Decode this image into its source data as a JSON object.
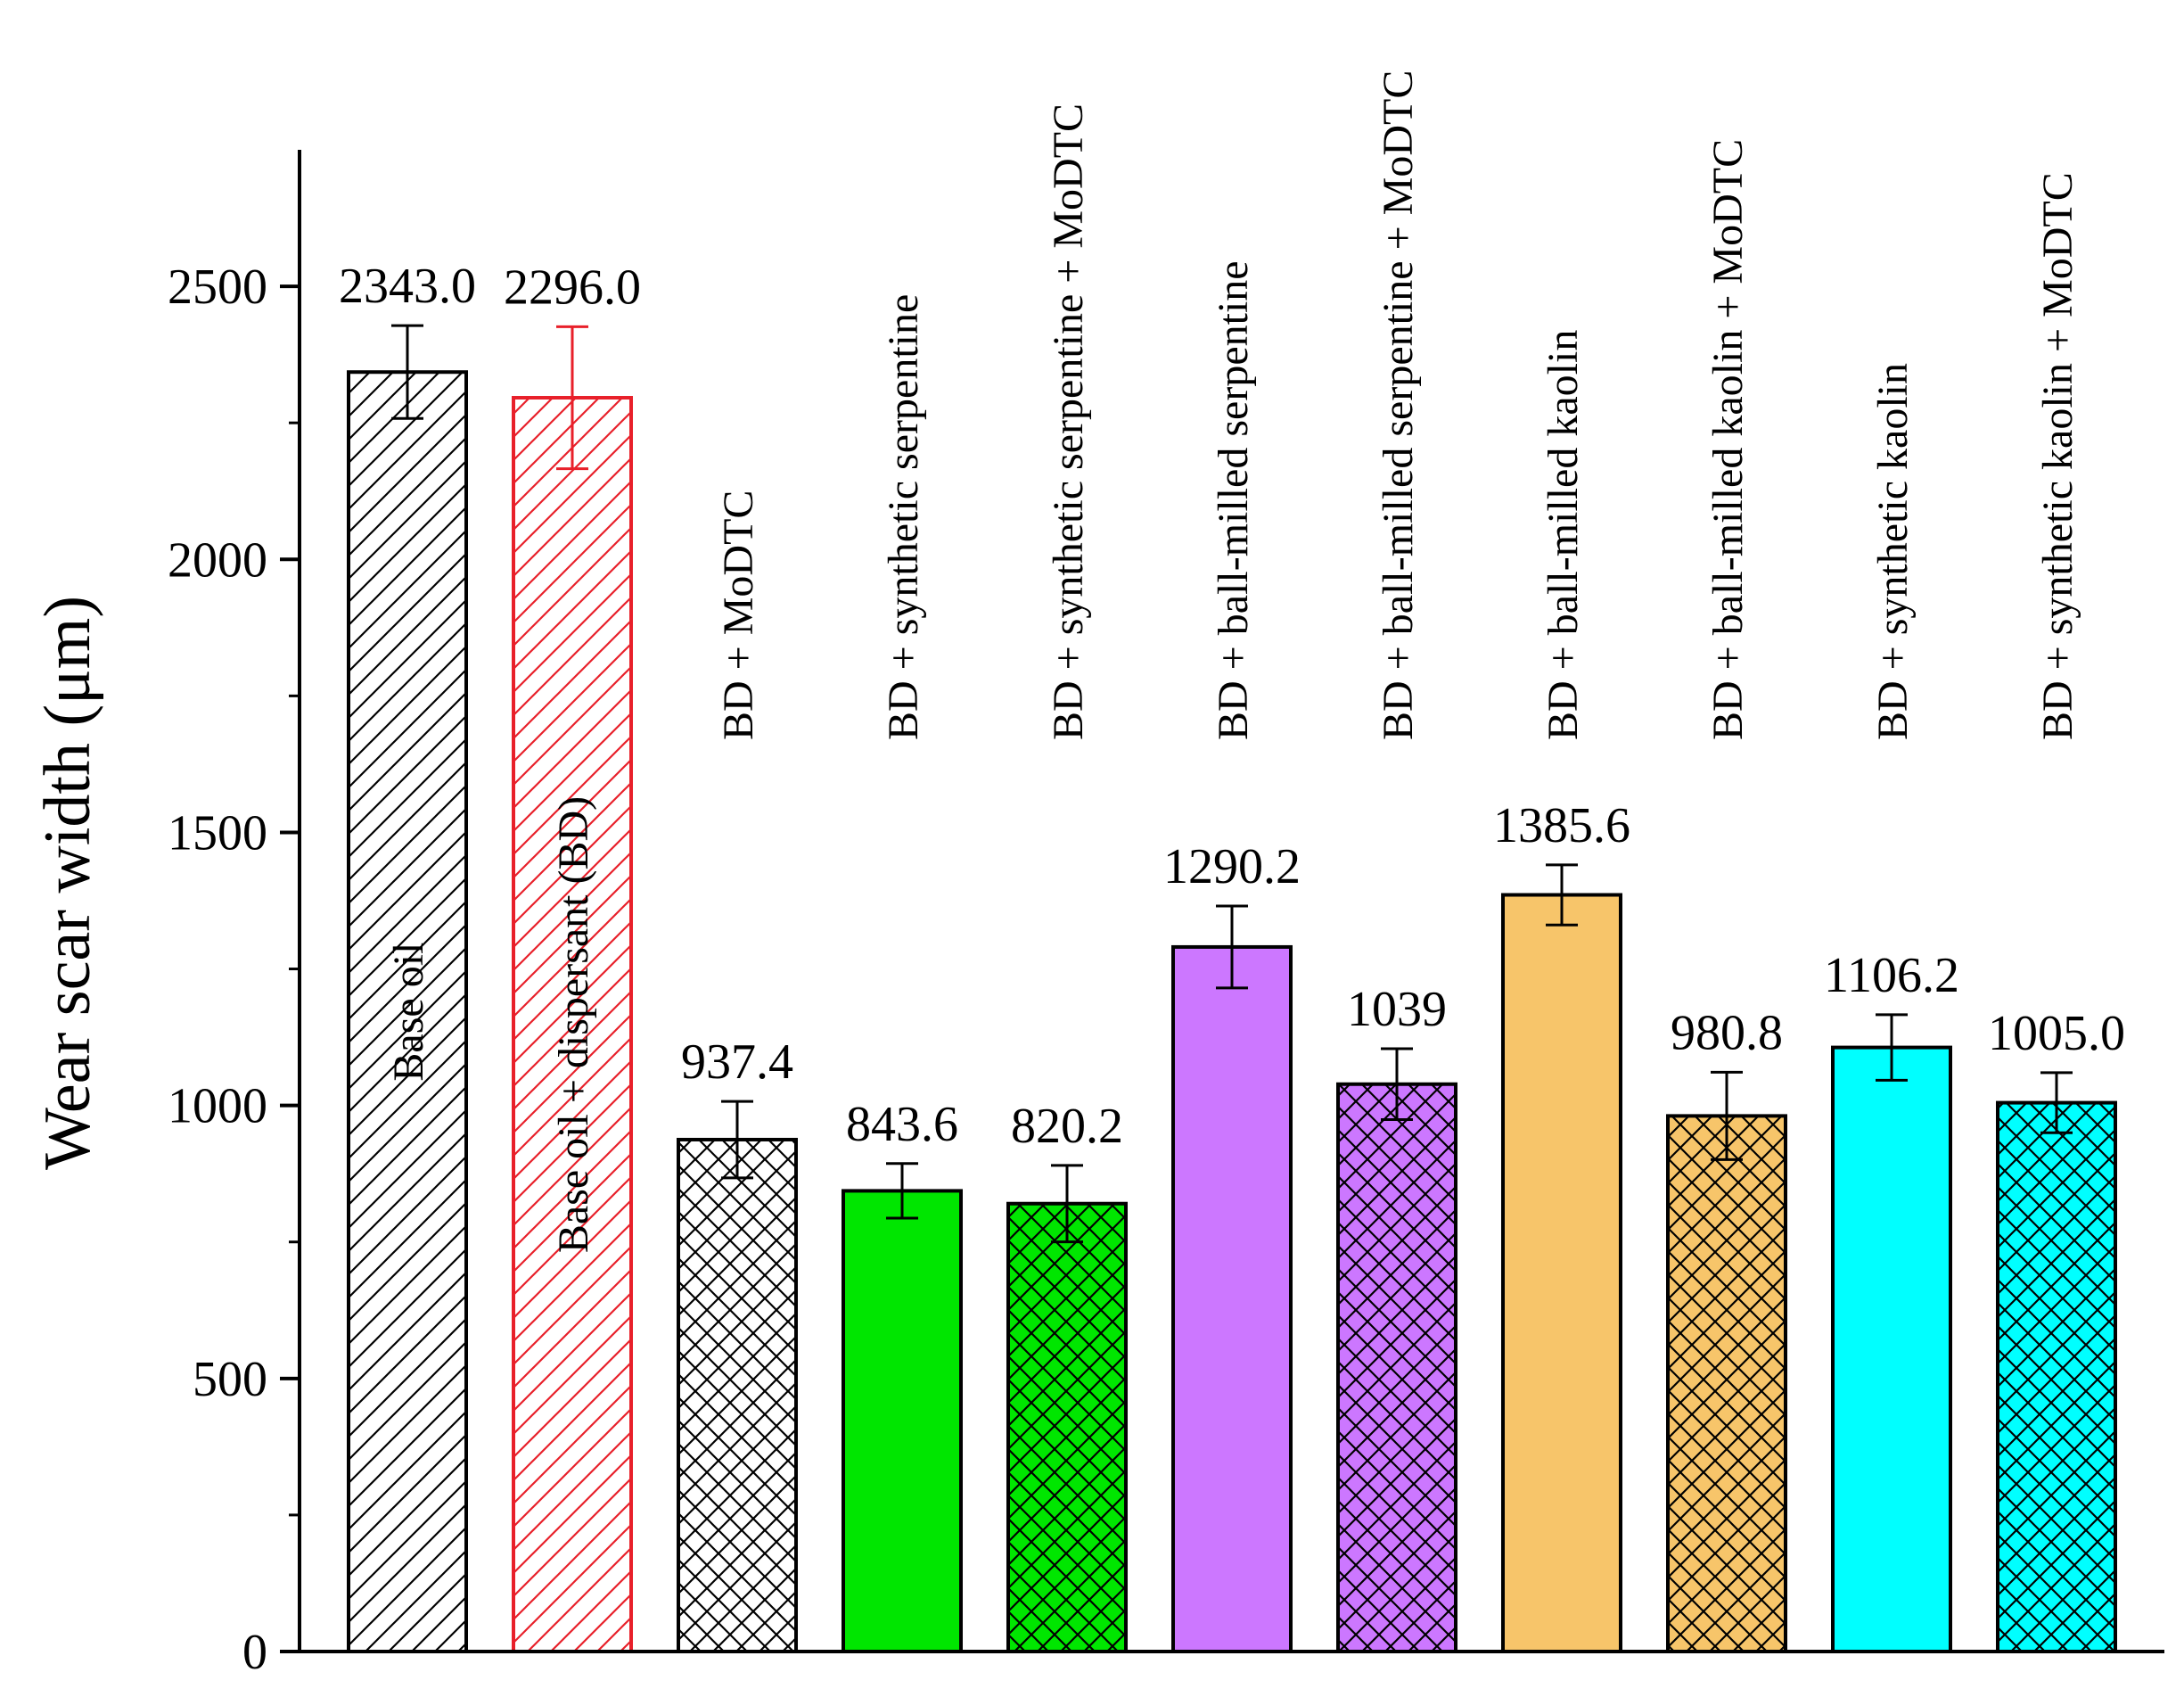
{
  "chart_data": {
    "type": "bar",
    "title": "",
    "xlabel": "",
    "ylabel": "Wear scar width (μm)",
    "ylim": [
      0,
      2750
    ],
    "yticks": [
      0,
      500,
      1000,
      1500,
      2000,
      2500
    ],
    "categories": [
      "Base oil",
      "Base oil + dispersant (BD)",
      "BD + MoDTC",
      "BD + synthetic serpentine",
      "BD + synthetic serpentine + MoDTC",
      "BD + ball-milled serpentine",
      "BD + ball-milled serpentine + MoDTC",
      "BD + ball-milled kaolin",
      "BD + ball-milled kaolin + MoDTC",
      "BD + synthetic kaolin",
      "BD + synthetic kaolin + MoDTC"
    ],
    "values": [
      2343.0,
      2296.0,
      937.4,
      843.6,
      820.2,
      1290.2,
      1039,
      1385.6,
      980.8,
      1106.2,
      1005.0
    ],
    "value_labels": [
      "2343.0",
      "2296.0",
      "937.4",
      "843.6",
      "820.2",
      "1290.2",
      "1039",
      "1385.6",
      "980.8",
      "1106.2",
      "1005.0"
    ],
    "errors": [
      85,
      130,
      70,
      50,
      70,
      75,
      65,
      55,
      80,
      60,
      55
    ],
    "fills": [
      "#ffffff",
      "#ffffff",
      "#ffffff",
      "#00e600",
      "#00e600",
      "#cc77ff",
      "#cc77ff",
      "#f7c56a",
      "#f7c56a",
      "#00ffff",
      "#00ffff"
    ],
    "strokes": [
      "#000000",
      "#e8202a",
      "#000000",
      "#000000",
      "#000000",
      "#000000",
      "#000000",
      "#000000",
      "#000000",
      "#000000",
      "#000000"
    ],
    "patterns": [
      "diag",
      "diag",
      "cross",
      "none",
      "cross",
      "none",
      "cross",
      "none",
      "cross",
      "none",
      "cross"
    ],
    "label_inside": [
      true,
      true,
      false,
      false,
      false,
      false,
      false,
      false,
      false,
      false,
      false
    ]
  }
}
